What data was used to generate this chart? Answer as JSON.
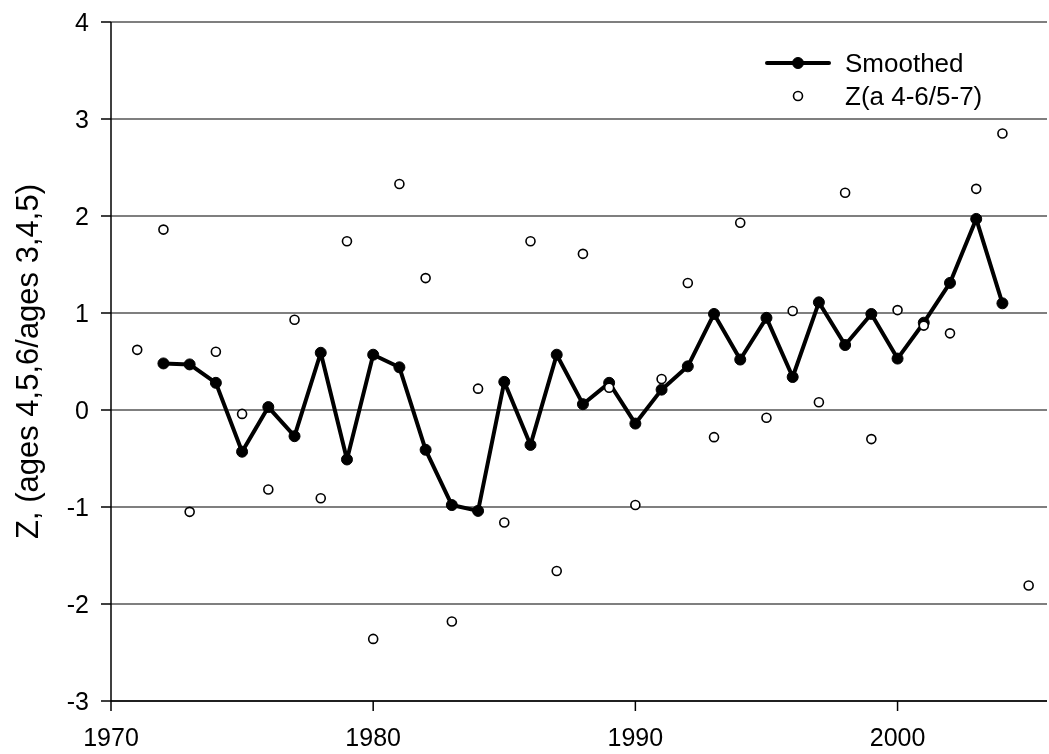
{
  "chart_data": {
    "type": "line",
    "ylabel": "Z, (ages 4,5,6/ages 3,4,5)",
    "xlim": [
      1970,
      2005.7
    ],
    "xticks": [
      1970,
      1980,
      1990,
      2000
    ],
    "ylim": [
      -3,
      4
    ],
    "yticks": [
      -3,
      -2,
      -1,
      0,
      1,
      2,
      3,
      4
    ],
    "grid": "y",
    "legend": "top right",
    "series": [
      {
        "name": "Smoothed",
        "color": "#000000",
        "marker": "circle",
        "line_style": "solid",
        "x": [
          1972,
          1973,
          1974,
          1975,
          1976,
          1977,
          1978,
          1979,
          1980,
          1981,
          1982,
          1983,
          1984,
          1985,
          1986,
          1987,
          1988,
          1989,
          1990,
          1991,
          1992,
          1993,
          1994,
          1995,
          1996,
          1997,
          1998,
          1999,
          2000,
          2001,
          2002,
          2003,
          2004
        ],
        "values": [
          0.48,
          0.47,
          0.28,
          -0.43,
          0.03,
          -0.27,
          0.59,
          -0.51,
          0.57,
          0.44,
          -0.41,
          -0.98,
          -1.04,
          0.29,
          -0.36,
          0.57,
          0.06,
          0.28,
          -0.14,
          0.21,
          0.45,
          0.99,
          0.52,
          0.95,
          0.34,
          1.11,
          0.67,
          0.99,
          0.53,
          0.9,
          1.31,
          1.97,
          1.1
        ]
      },
      {
        "name": "Z(a 4-6/5-7)",
        "type": "scatter",
        "color": "#000000",
        "marker": "circle",
        "x": [
          1971,
          1972,
          1973,
          1974,
          1975,
          1976,
          1977,
          1978,
          1979,
          1980,
          1981,
          1982,
          1983,
          1984,
          1985,
          1986,
          1987,
          1988,
          1989,
          1990,
          1991,
          1992,
          1993,
          1994,
          1995,
          1996,
          1997,
          1998,
          1999,
          2000,
          2001,
          2002,
          2003,
          2004,
          2005
        ],
        "values": [
          0.62,
          1.86,
          -1.05,
          0.6,
          -0.04,
          -0.82,
          0.93,
          -0.91,
          1.74,
          -2.36,
          2.33,
          1.36,
          -2.18,
          0.22,
          -1.16,
          1.74,
          -1.66,
          1.61,
          0.23,
          -0.98,
          0.32,
          1.31,
          -0.28,
          1.93,
          -0.08,
          1.02,
          0.08,
          2.24,
          -0.3,
          1.03,
          0.87,
          0.79,
          2.28,
          2.85,
          -1.81
        ]
      }
    ]
  }
}
